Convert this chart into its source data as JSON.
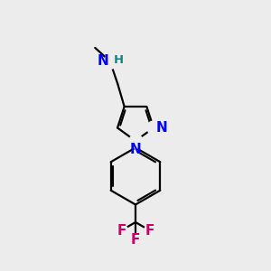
{
  "bg_color": "#ececec",
  "bond_color": "#000000",
  "N_color": "#0000ff",
  "H_color": "#008b8b",
  "F_color": "#cc0066",
  "line_width": 1.6,
  "font_size_atoms": 11,
  "font_size_H": 9.5,
  "xlim": [
    0,
    10
  ],
  "ylim": [
    0,
    10
  ]
}
